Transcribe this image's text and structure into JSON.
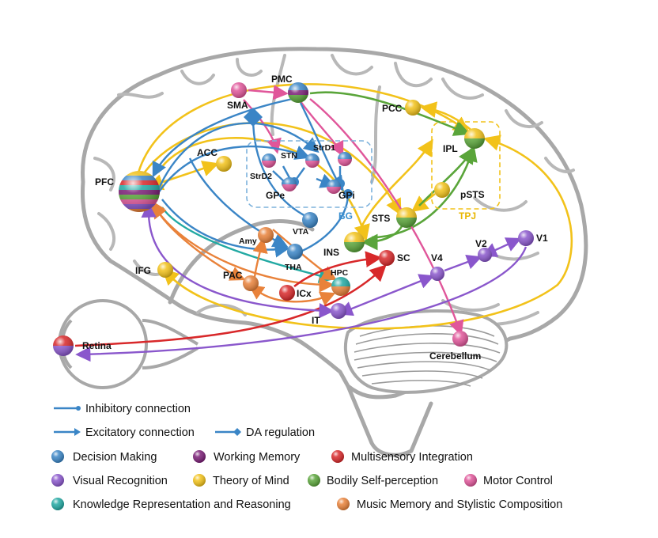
{
  "colors": {
    "decision": "#3a85c6",
    "working_memory": "#7a1e76",
    "multisensory": "#d8282a",
    "visual": "#8a57cc",
    "tom": "#f2c21a",
    "bodily": "#5aa53a",
    "motor": "#e0569a",
    "knowledge": "#22a9a3",
    "music": "#e9823a"
  },
  "regions": {
    "pmc": "PMC",
    "sma": "SMA",
    "pcc": "PCC",
    "ipl": "IPL",
    "acc": "ACC",
    "pfc": "PFC",
    "stn": "STN",
    "strd1": "StrD1",
    "strd2": "StrD2",
    "gpe": "GPe",
    "gpi": "GPi",
    "bg": "BG",
    "pfsts": "pSTS",
    "tpj": "TPJ",
    "sts": "STS",
    "vta": "VTA",
    "amy": "Amy",
    "ins": "INS",
    "tha": "THA",
    "sc": "SC",
    "v4": "V4",
    "v2": "V2",
    "v1": "V1",
    "ifg": "IFG",
    "pac": "PAC",
    "hpc": "HPC",
    "icx": "ICx",
    "it": "IT",
    "retina": "Retina",
    "cerebellum": "Cerebellum"
  },
  "legend": {
    "inhibitory": "Inhibitory connection",
    "excitatory": "Excitatory connection",
    "da": "DA regulation",
    "decision": "Decision Making",
    "working_memory": "Working Memory",
    "multisensory": "Multisensory Integration",
    "visual": "Visual Recognition",
    "tom": "Theory of Mind",
    "bodily": "Bodily Self-perception",
    "motor": "Motor Control",
    "knowledge": "Knowledge Representation and Reasoning",
    "music": "Music Memory and Stylistic Composition"
  }
}
